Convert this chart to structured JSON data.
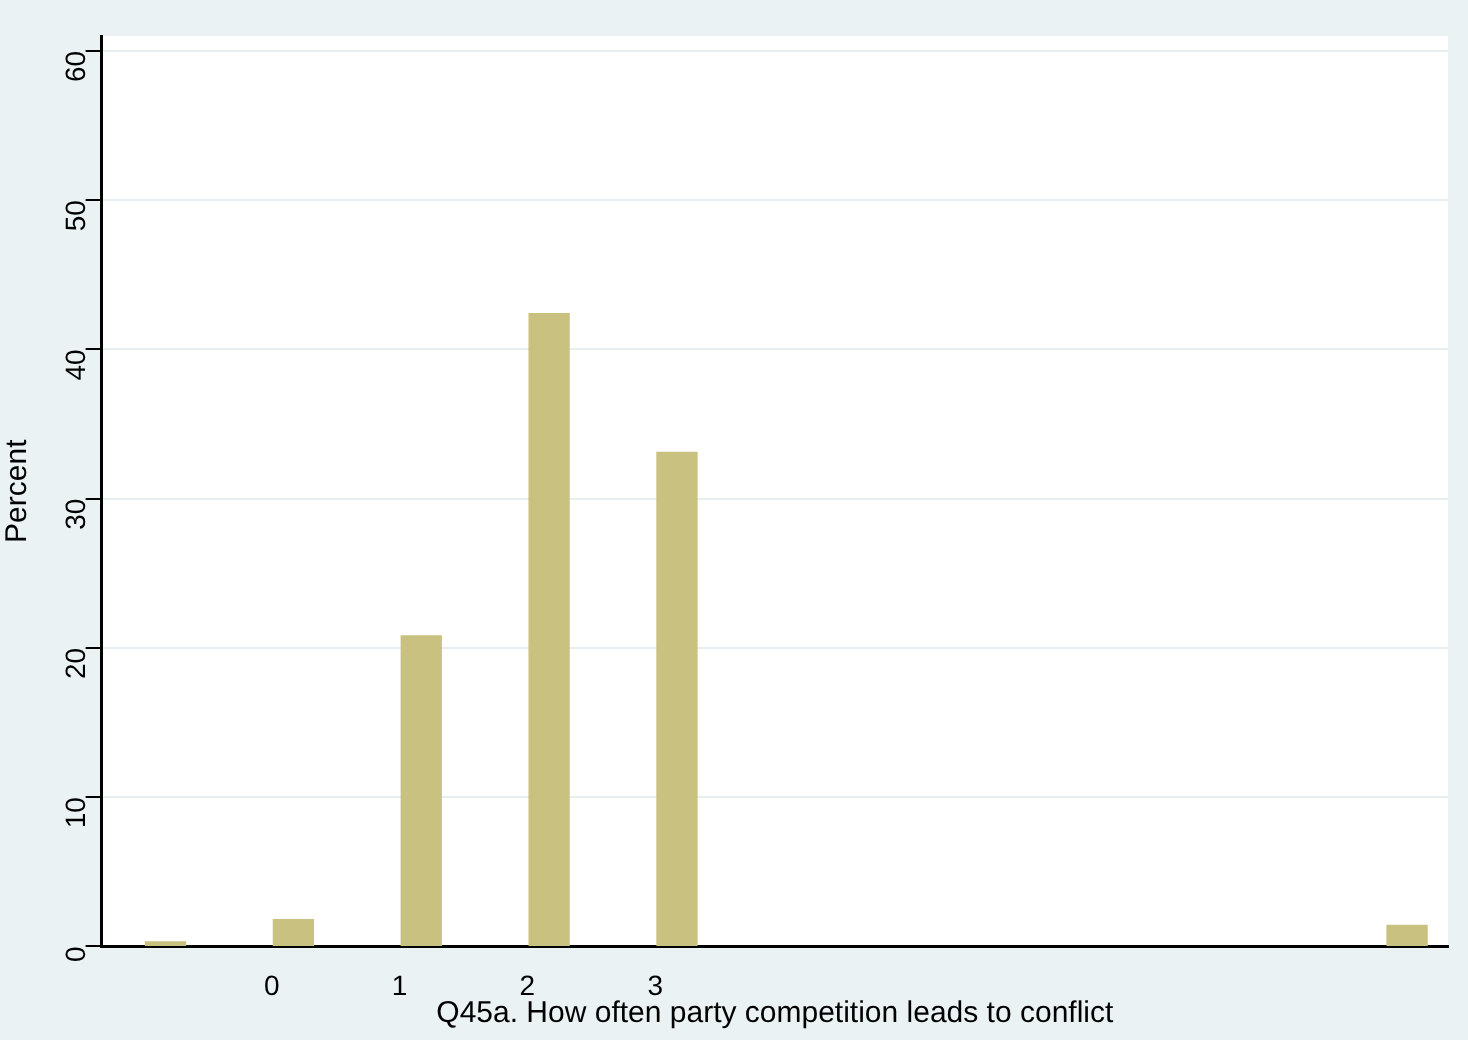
{
  "chart_data": {
    "type": "bar",
    "xlabel": "Q45a. How often party competition leads to conflict",
    "ylabel": "Percent",
    "x": [
      -0.83,
      0.17,
      1.17,
      2.17,
      3.17,
      8.88
    ],
    "values": [
      0.3,
      1.8,
      20.8,
      42.4,
      33.1,
      1.4
    ],
    "color": "#c9c17f",
    "xlim": [
      -1.33,
      9.2
    ],
    "xticks": [
      0,
      1,
      2,
      3
    ],
    "ylim": [
      0,
      61
    ],
    "yticks": [
      0,
      10,
      20,
      30,
      40,
      50,
      60
    ],
    "grid": "y"
  }
}
